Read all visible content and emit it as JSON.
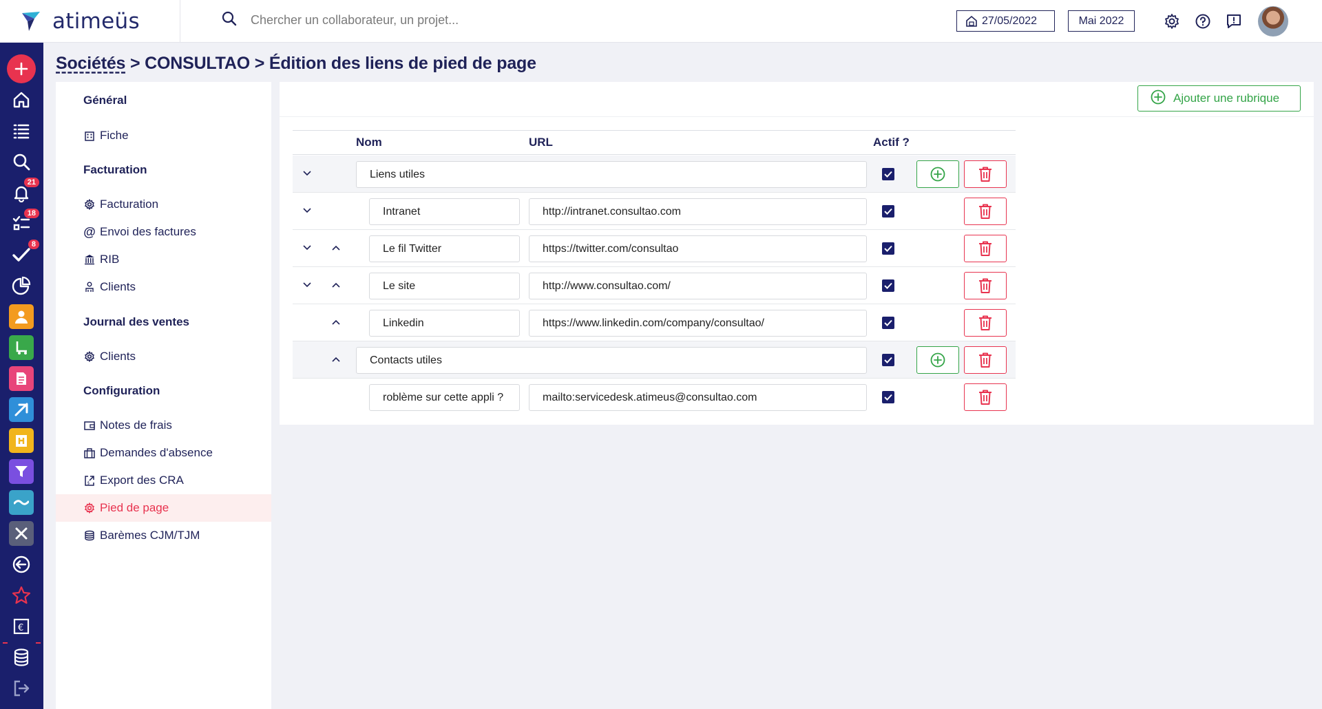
{
  "app": {
    "brand": "atimeüs",
    "search_placeholder": "Chercher un collaborateur, un projet...",
    "today_date": "27/05/2022",
    "period": "Mai 2022"
  },
  "rail": {
    "badges": {
      "notifications": "21",
      "tasks": "18",
      "validations": "8"
    },
    "colors": {
      "bg": "#1a1f6c",
      "accent": "#e8334f",
      "orange": "#f39b1f",
      "green": "#39a84a",
      "pink": "#e8457a",
      "blue": "#2f8fd9",
      "yellow": "#f1b51c",
      "purple": "#7a4fe0",
      "teal": "#3aa3c9",
      "gray": "#5a5f7a"
    }
  },
  "breadcrumb": {
    "root": "Sociétés",
    "sep1": " > ",
    "company": "CONSULTAO",
    "sep2": " > ",
    "page": "Édition des liens de pied de page"
  },
  "settings_menu": {
    "sections": [
      {
        "title": "Général",
        "items": [
          {
            "label": "Fiche",
            "icon": "building-icon"
          }
        ]
      },
      {
        "title": "Facturation",
        "items": [
          {
            "label": "Facturation",
            "icon": "gear-icon"
          },
          {
            "label": "Envoi des factures",
            "icon": "at-icon"
          },
          {
            "label": "RIB",
            "icon": "bank-icon"
          },
          {
            "label": "Clients",
            "icon": "users-icon"
          }
        ]
      },
      {
        "title": "Journal des ventes",
        "items": [
          {
            "label": "Clients",
            "icon": "gear-icon"
          }
        ]
      },
      {
        "title": "Configuration",
        "items": [
          {
            "label": "Notes de frais",
            "icon": "wallet-icon"
          },
          {
            "label": "Demandes d'absence",
            "icon": "suitcase-icon"
          },
          {
            "label": "Export des CRA",
            "icon": "export-icon"
          },
          {
            "label": "Pied de page",
            "icon": "gear-icon",
            "active": true
          },
          {
            "label": "Barèmes CJM/TJM",
            "icon": "database-icon"
          }
        ]
      }
    ]
  },
  "toolbar": {
    "add_rubrique_label": "Ajouter une rubrique"
  },
  "table": {
    "headers": {
      "name": "Nom",
      "url": "URL",
      "active": "Actif ?"
    },
    "rows": [
      {
        "type": "group",
        "name": "Liens utiles",
        "url": "",
        "active": true,
        "down": true,
        "up": false
      },
      {
        "type": "link",
        "name": "Intranet",
        "url": "http://intranet.consultao.com",
        "active": true,
        "down": true,
        "up": false
      },
      {
        "type": "link",
        "name": "Le fil Twitter",
        "url": "https://twitter.com/consultao",
        "active": true,
        "down": true,
        "up": true
      },
      {
        "type": "link",
        "name": "Le site",
        "url": "http://www.consultao.com/",
        "active": true,
        "down": true,
        "up": true
      },
      {
        "type": "link",
        "name": "Linkedin",
        "url": "https://www.linkedin.com/company/consultao/",
        "active": true,
        "down": false,
        "up": true
      },
      {
        "type": "group",
        "name": "Contacts utiles",
        "url": "",
        "active": true,
        "down": false,
        "up": true
      },
      {
        "type": "link",
        "name": "roblème sur cette appli ?",
        "url": "mailto:servicedesk.atimeus@consultao.com",
        "active": true,
        "down": false,
        "up": false
      }
    ]
  }
}
